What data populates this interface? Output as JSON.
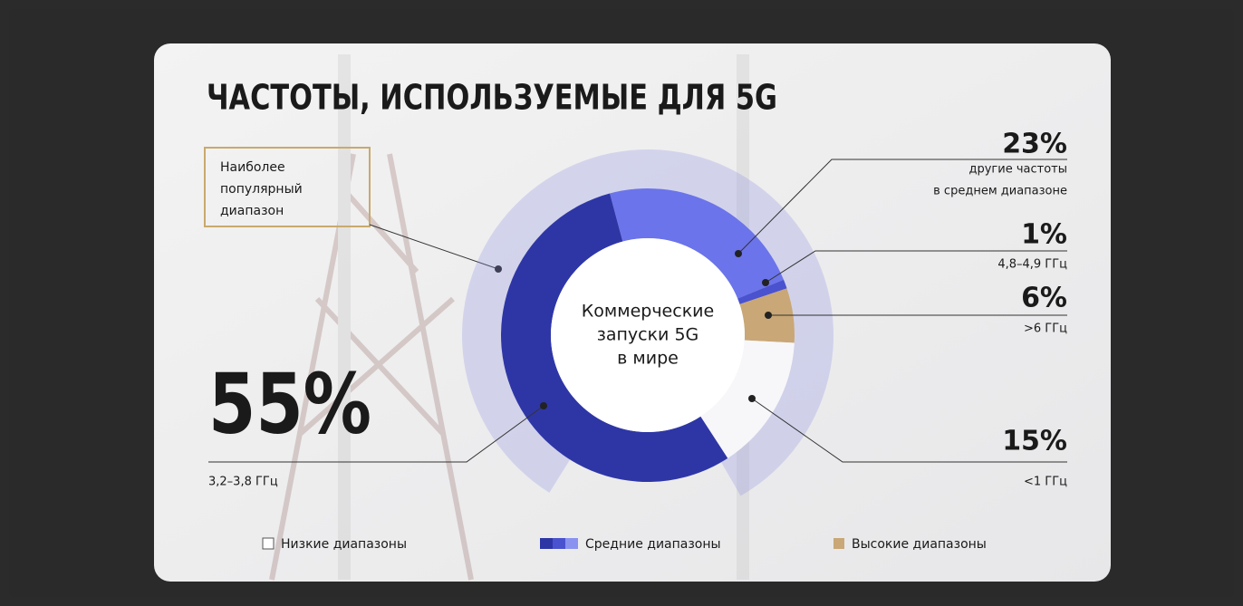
{
  "chart_data": {
    "type": "donut",
    "title": "ЧАСТОТЫ, ИСПОЛЬЗУЕМЫЕ ДЛЯ 5G",
    "center_label": [
      "Коммерческие",
      "запуски 5G",
      "в мире"
    ],
    "annotation": [
      "Наиболее",
      "популярный",
      "диапазон"
    ],
    "values": [
      23,
      1,
      6,
      15,
      55
    ],
    "value_labels": [
      "23%",
      "1%",
      "6%",
      "15%",
      "55%"
    ],
    "categories": [
      [
        "другие частоты",
        "в среднем диапазоне"
      ],
      [
        "4,8–4,9 ГГц"
      ],
      [
        ">6 ГГц"
      ],
      [
        "<1 ГГц"
      ],
      [
        "3,2–3,8 ГГц"
      ]
    ],
    "colors": [
      "#6b74ea",
      "#4a52cf",
      "#c9a776",
      "#f7f7fa",
      "#2e36a6"
    ],
    "legend": [
      {
        "name": "Низкие диапазоны",
        "colors": [
          "#ffffff"
        ]
      },
      {
        "name": "Средние диапазоны",
        "colors": [
          "#2e36a6",
          "#4a52cf",
          "#8a92f0"
        ]
      },
      {
        "name": "Высокие диапазоны",
        "colors": [
          "#c9a776"
        ]
      }
    ]
  }
}
